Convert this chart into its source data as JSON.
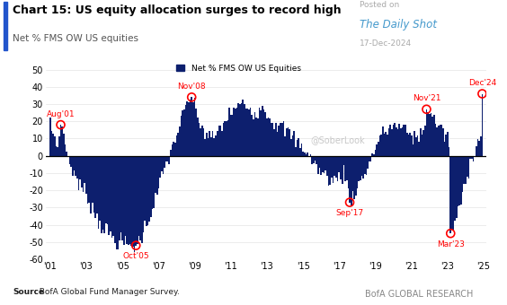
{
  "title": "Chart 15: US equity allocation surges to record high",
  "subtitle": "Net % FMS OW US equities",
  "posted_on": "Posted on",
  "daily_shot": "The Daily Shot",
  "date_label": "17-Dec-2024",
  "soberlook": "@SoberLook",
  "source_bold": "Source",
  "source_rest": ": BofA Global Fund Manager Survey.",
  "branding": "BofA GLOBAL RESEARCH",
  "legend_label": "Net % FMS OW US Equities",
  "bar_color": "#0d1f6e",
  "title_color": "#000000",
  "subtitle_color": "#555555",
  "annotation_color": "#cc0000",
  "posted_color": "#aaaaaa",
  "daily_shot_color": "#4499cc",
  "soberlook_color": "#bbbbbb",
  "ylim": [
    -60,
    55
  ],
  "yticks": [
    -60,
    -50,
    -40,
    -30,
    -20,
    -10,
    0,
    10,
    20,
    30,
    40,
    50
  ],
  "key_x": [
    0,
    5,
    7,
    10,
    12,
    16,
    20,
    24,
    28,
    32,
    36,
    40,
    44,
    48,
    50,
    52,
    54,
    56,
    57,
    60,
    65,
    70,
    75,
    80,
    85,
    90,
    93,
    94,
    96,
    100,
    104,
    108,
    112,
    116,
    120,
    124,
    128,
    132,
    136,
    140,
    143,
    144,
    148,
    152,
    156,
    160,
    164,
    168,
    170,
    172,
    176,
    180,
    184,
    188,
    192,
    196,
    199,
    200,
    204,
    208,
    212,
    216,
    220,
    224,
    228,
    232,
    236,
    240,
    244,
    248,
    250,
    252,
    256,
    260,
    264,
    265,
    266,
    268,
    272,
    276,
    280,
    284,
    286,
    287
  ],
  "key_y": [
    18,
    5,
    18,
    8,
    -2,
    -10,
    -18,
    -22,
    -30,
    -38,
    -42,
    -46,
    -50,
    -50,
    -51,
    -52,
    -52,
    -52,
    -52,
    -48,
    -38,
    -25,
    -10,
    2,
    15,
    28,
    33,
    34,
    28,
    18,
    12,
    10,
    15,
    20,
    25,
    28,
    30,
    28,
    25,
    28,
    28,
    25,
    20,
    18,
    15,
    12,
    8,
    5,
    3,
    0,
    -5,
    -10,
    -12,
    -15,
    -12,
    -10,
    -27,
    -25,
    -18,
    -12,
    -5,
    5,
    12,
    15,
    18,
    16,
    15,
    12,
    10,
    15,
    27,
    25,
    20,
    15,
    10,
    5,
    -45,
    -42,
    -30,
    -15,
    0,
    8,
    10,
    36
  ]
}
